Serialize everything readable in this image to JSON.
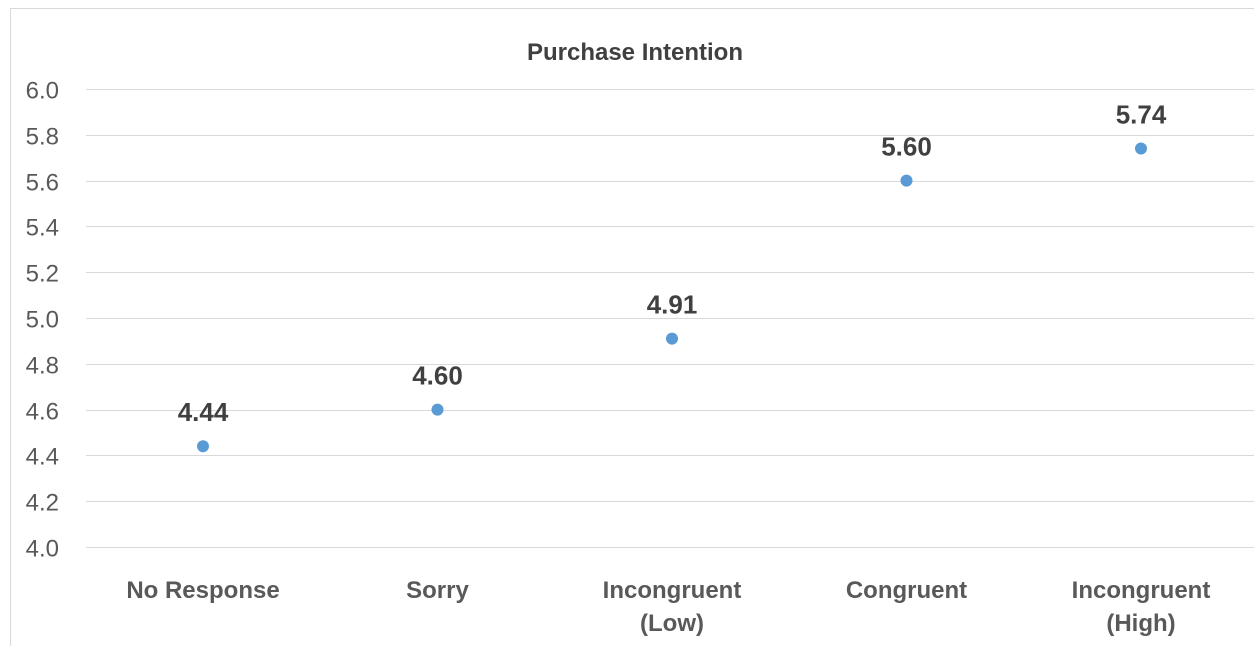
{
  "chart_data": {
    "type": "scatter",
    "title": "Purchase Intention",
    "categories": [
      [
        "No Response"
      ],
      [
        "Sorry"
      ],
      [
        "Incongruent",
        "(Low)"
      ],
      [
        "Congruent"
      ],
      [
        "Incongruent",
        "(High)"
      ]
    ],
    "values": [
      4.44,
      4.6,
      4.91,
      5.6,
      5.74
    ],
    "value_labels": [
      "4.44",
      "4.60",
      "4.91",
      "5.60",
      "5.74"
    ],
    "ylim": [
      4.0,
      6.0
    ],
    "yticks": [
      "4.0",
      "4.2",
      "4.4",
      "4.6",
      "4.8",
      "5.0",
      "5.2",
      "5.4",
      "5.6",
      "5.8",
      "6.0"
    ],
    "grid": true,
    "legend": "none",
    "colors": {
      "marker": "#5B9BD5",
      "grid": "#D9D9D9",
      "text": "#404040",
      "axis_text": "#595959"
    }
  }
}
